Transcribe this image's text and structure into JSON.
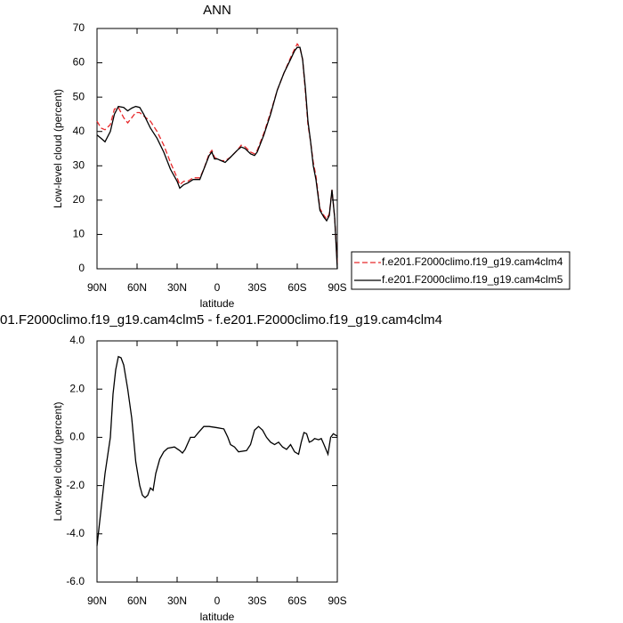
{
  "chart_data": [
    {
      "type": "line",
      "title": "ANN",
      "xlabel": "latitude",
      "ylabel": "Low-level cloud (percent)",
      "xlim": [
        90,
        -90
      ],
      "ylim": [
        0,
        70
      ],
      "xticks": [
        {
          "value": 90,
          "label": "90N"
        },
        {
          "value": 60,
          "label": "60N"
        },
        {
          "value": 30,
          "label": "30N"
        },
        0,
        {
          "value": -30,
          "label": "30S"
        },
        {
          "value": -60,
          "label": "60S"
        },
        {
          "value": -90,
          "label": "90S"
        }
      ],
      "yticks": [
        0,
        10,
        20,
        30,
        40,
        50,
        60,
        70
      ],
      "legend": "right",
      "x": [
        90,
        87,
        84,
        80,
        77,
        74,
        70,
        67,
        64,
        61,
        58,
        55,
        50,
        45,
        40,
        35,
        30,
        28,
        25,
        22,
        18,
        13,
        10,
        6,
        4,
        2,
        0,
        -3,
        -6,
        -10,
        -15,
        -18,
        -21,
        -25,
        -28,
        -30,
        -35,
        -40,
        -45,
        -50,
        -55,
        -58,
        -60,
        -62,
        -64,
        -66,
        -68,
        -70,
        -72,
        -74,
        -77,
        -80,
        -82,
        -84,
        -86,
        -88,
        -90
      ],
      "series": [
        {
          "name": "f.e201.F2000climo.f19_g19.cam4clm4",
          "color": "#e8292b",
          "line_style": "dashed",
          "values": [
            43,
            41,
            40.5,
            42,
            46.5,
            47,
            44,
            42.5,
            44,
            45.5,
            45.5,
            44.5,
            43,
            40,
            36,
            31,
            26.5,
            24.5,
            25.5,
            25.5,
            26.5,
            26.5,
            29,
            33.5,
            34.5,
            32.5,
            32,
            31.5,
            31.5,
            32.5,
            34.5,
            36,
            35.5,
            34,
            33.5,
            34.5,
            39.5,
            45.5,
            52,
            57,
            61.5,
            64,
            65.5,
            64.5,
            61,
            52,
            42,
            37,
            31,
            27,
            17.5,
            15.5,
            14.5,
            16,
            23,
            15,
            1
          ]
        },
        {
          "name": "f.e201.F2000climo.f19_g19.cam4clm5",
          "color": "#000000",
          "line_style": "solid",
          "values": [
            39,
            38,
            37,
            40,
            45,
            47.3,
            47,
            46,
            46.8,
            47.3,
            47,
            45,
            41,
            38,
            34,
            29,
            25.5,
            23.5,
            24.5,
            25,
            26,
            26,
            29,
            33,
            34,
            32,
            32,
            31.5,
            31,
            32.5,
            34.5,
            35.5,
            35,
            33.5,
            33,
            34,
            39,
            45,
            52,
            57,
            61,
            63.5,
            64.5,
            64.5,
            61,
            53,
            43,
            37,
            30,
            26,
            17,
            15,
            14,
            15.5,
            23,
            15,
            0
          ]
        }
      ]
    },
    {
      "type": "line",
      "title": "01.F2000climo.f19_g19.cam4clm5 - f.e201.F2000climo.f19_g19.cam4clm4",
      "xlabel": "latitude",
      "ylabel": "Low-level cloud (percent)",
      "xlim": [
        90,
        -90
      ],
      "ylim": [
        -6,
        4
      ],
      "xticks": [
        {
          "value": 90,
          "label": "90N"
        },
        {
          "value": 60,
          "label": "60N"
        },
        {
          "value": 30,
          "label": "30N"
        },
        0,
        {
          "value": -30,
          "label": "30S"
        },
        {
          "value": -60,
          "label": "60S"
        },
        {
          "value": -90,
          "label": "90S"
        }
      ],
      "yticks": [
        {
          "value": -6,
          "label": "-6.0"
        },
        {
          "value": -4,
          "label": "-4.0"
        },
        {
          "value": -2,
          "label": "-2.0"
        },
        {
          "value": 0,
          "label": "0.0"
        },
        {
          "value": 2,
          "label": "2.0"
        },
        {
          "value": 4,
          "label": "4.0"
        }
      ],
      "x": [
        90,
        87,
        84,
        80,
        78,
        76,
        74,
        72,
        70,
        67,
        64,
        61,
        58,
        56,
        54,
        52,
        50,
        48,
        46,
        43,
        40,
        37,
        32,
        28,
        26,
        24,
        20,
        17,
        14,
        10,
        6,
        0,
        -5,
        -8,
        -10,
        -13,
        -16,
        -22,
        -25,
        -28,
        -31,
        -34,
        -37,
        -40,
        -43,
        -46,
        -49,
        -52,
        -55,
        -58,
        -61,
        -63,
        -65,
        -67,
        -69,
        -71,
        -73,
        -76,
        -78,
        -80,
        -83,
        -85,
        -87,
        -90
      ],
      "series": [
        {
          "color": "#000000",
          "line_style": "solid",
          "values": [
            -4.5,
            -3,
            -1.5,
            0,
            1.8,
            2.8,
            3.35,
            3.3,
            3.0,
            2.0,
            0.8,
            -1,
            -2.0,
            -2.4,
            -2.5,
            -2.4,
            -2.1,
            -2.2,
            -1.5,
            -0.9,
            -0.6,
            -0.45,
            -0.4,
            -0.55,
            -0.65,
            -0.5,
            0.0,
            0.0,
            0.2,
            0.45,
            0.45,
            0.4,
            0.35,
            0.0,
            -0.3,
            -0.4,
            -0.6,
            -0.55,
            -0.3,
            0.3,
            0.45,
            0.3,
            0.0,
            -0.2,
            -0.3,
            -0.2,
            -0.4,
            -0.5,
            -0.3,
            -0.6,
            -0.7,
            -0.2,
            0.2,
            0.15,
            -0.2,
            -0.15,
            -0.05,
            -0.1,
            -0.05,
            -0.3,
            -0.7,
            0.0,
            0.15,
            0.05
          ]
        }
      ]
    }
  ]
}
